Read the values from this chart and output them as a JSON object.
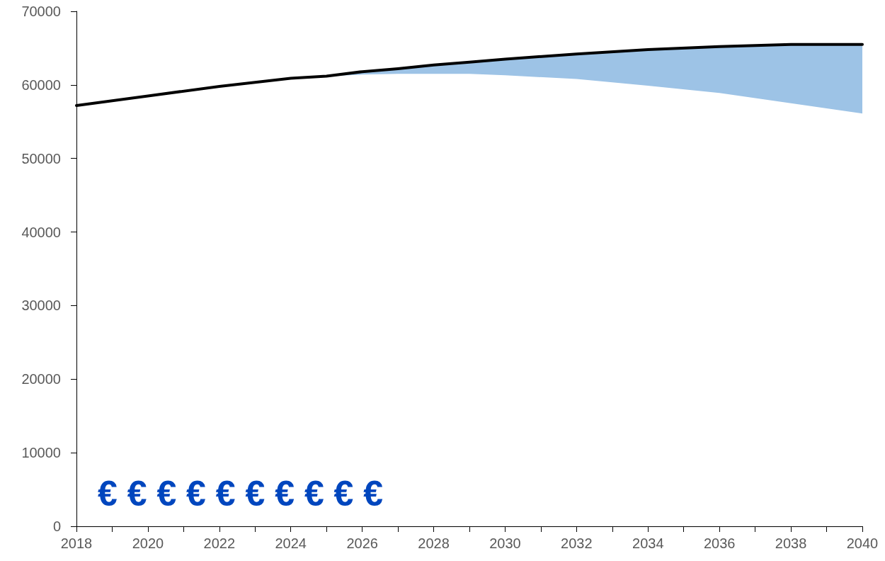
{
  "chart_data": {
    "type": "line",
    "x": [
      2018,
      2020,
      2022,
      2024,
      2025,
      2026,
      2027,
      2028,
      2029,
      2030,
      2032,
      2034,
      2036,
      2038,
      2040
    ],
    "series": [
      {
        "color": "#000000",
        "values": [
          57200,
          58500,
          59800,
          60900,
          61200,
          61800,
          62200,
          62700,
          63100,
          63500,
          64200,
          64800,
          65200,
          65500,
          65500
        ],
        "lower": [
          57200,
          58500,
          59800,
          60900,
          61200,
          61400,
          61500,
          61500,
          61500,
          61300,
          60800,
          59900,
          58900,
          57500,
          56100
        ],
        "upper": [
          57200,
          58500,
          59800,
          60900,
          61200,
          61800,
          62200,
          62700,
          63100,
          63500,
          64200,
          64800,
          65200,
          65500,
          65500
        ]
      }
    ],
    "xlim": [
      2018,
      2040
    ],
    "xticks": [
      2018,
      {
        "value": 2019,
        "label": null
      },
      2020,
      {
        "value": 2021,
        "label": null
      },
      2022,
      {
        "value": 2023,
        "label": null
      },
      2024,
      {
        "value": 2025,
        "label": null
      },
      2026,
      {
        "value": 2027,
        "label": null
      },
      2028,
      {
        "value": 2029,
        "label": null
      },
      2030,
      {
        "value": 2031,
        "label": null
      },
      2032,
      {
        "value": 2033,
        "label": null
      },
      2034,
      {
        "value": 2035,
        "label": null
      },
      2036,
      {
        "value": 2037,
        "label": null
      },
      2038,
      {
        "value": 2039,
        "label": null
      },
      2040
    ],
    "ylim": [
      0,
      70000
    ],
    "yticks": [
      0,
      10000,
      20000,
      30000,
      40000,
      50000,
      60000,
      70000
    ],
    "grid": false,
    "marker": "none",
    "line_style": "solid",
    "annotations": [
      "€ € € € € € € € € €"
    ]
  }
}
